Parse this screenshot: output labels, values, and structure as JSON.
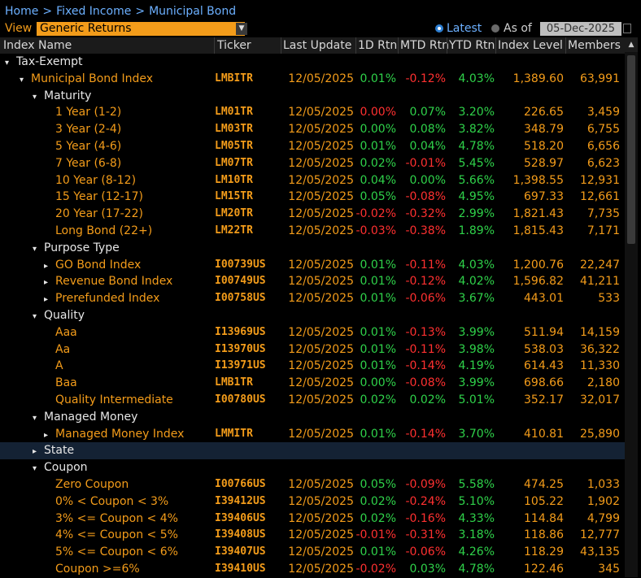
{
  "breadcrumb": [
    "Home",
    "Fixed Income",
    "Municipal Bond"
  ],
  "view": {
    "label": "View",
    "selected": "Generic Returns"
  },
  "date_mode": {
    "latest_label": "Latest",
    "as_of_label": "As of",
    "as_of_date": "05-Dec-2025",
    "selected": "Latest"
  },
  "columns": [
    "Index Name",
    "Ticker",
    "Last Update",
    "1D Rtn",
    "MTD Rtn",
    "YTD Rtn",
    "Index Level",
    "Members"
  ],
  "colors": {
    "orange": "#f39c1a",
    "positive": "#2fd24a",
    "negative": "#ff3030",
    "link": "#6cb0ff"
  },
  "rows": [
    {
      "type": "group",
      "depth": 0,
      "expanded": true,
      "name": "Tax-Exempt"
    },
    {
      "type": "data",
      "depth": 1,
      "expanded": true,
      "name": "Municipal Bond Index",
      "ticker": "LMBITR",
      "date": "12/05/2025",
      "d1": "0.01%",
      "mtd": "-0.12%",
      "ytd": "4.03%",
      "level": "1,389.60",
      "members": "63,991"
    },
    {
      "type": "group",
      "depth": 2,
      "expanded": true,
      "name": "Maturity"
    },
    {
      "type": "data",
      "depth": 3,
      "name": "1 Year (1-2)",
      "ticker": "LM01TR",
      "date": "12/05/2025",
      "d1": "0.00%",
      "d1_color": "neg",
      "mtd": "0.07%",
      "ytd": "3.20%",
      "level": "226.65",
      "members": "3,459"
    },
    {
      "type": "data",
      "depth": 3,
      "name": "3 Year (2-4)",
      "ticker": "LM03TR",
      "date": "12/05/2025",
      "d1": "0.00%",
      "mtd": "0.08%",
      "ytd": "3.82%",
      "level": "348.79",
      "members": "6,755"
    },
    {
      "type": "data",
      "depth": 3,
      "name": "5 Year (4-6)",
      "ticker": "LM05TR",
      "date": "12/05/2025",
      "d1": "0.01%",
      "mtd": "0.04%",
      "ytd": "4.78%",
      "level": "518.20",
      "members": "6,656"
    },
    {
      "type": "data",
      "depth": 3,
      "name": "7 Year (6-8)",
      "ticker": "LM07TR",
      "date": "12/05/2025",
      "d1": "0.02%",
      "mtd": "-0.01%",
      "ytd": "5.45%",
      "level": "528.97",
      "members": "6,623"
    },
    {
      "type": "data",
      "depth": 3,
      "name": "10 Year (8-12)",
      "ticker": "LM10TR",
      "date": "12/05/2025",
      "d1": "0.04%",
      "mtd": "0.00%",
      "ytd": "5.66%",
      "level": "1,398.55",
      "members": "12,931"
    },
    {
      "type": "data",
      "depth": 3,
      "name": "15 Year (12-17)",
      "ticker": "LM15TR",
      "date": "12/05/2025",
      "d1": "0.05%",
      "mtd": "-0.08%",
      "ytd": "4.95%",
      "level": "697.33",
      "members": "12,661"
    },
    {
      "type": "data",
      "depth": 3,
      "name": "20 Year (17-22)",
      "ticker": "LM20TR",
      "date": "12/05/2025",
      "d1": "-0.02%",
      "mtd": "-0.32%",
      "ytd": "2.99%",
      "level": "1,821.43",
      "members": "7,735"
    },
    {
      "type": "data",
      "depth": 3,
      "name": "Long Bond (22+)",
      "ticker": "LM22TR",
      "date": "12/05/2025",
      "d1": "-0.03%",
      "mtd": "-0.38%",
      "ytd": "1.89%",
      "level": "1,815.43",
      "members": "7,171"
    },
    {
      "type": "group",
      "depth": 2,
      "expanded": true,
      "name": "Purpose Type"
    },
    {
      "type": "data",
      "depth": 3,
      "expanded": false,
      "name": "GO Bond Index",
      "ticker": "I00739US",
      "date": "12/05/2025",
      "d1": "0.01%",
      "mtd": "-0.11%",
      "ytd": "4.03%",
      "level": "1,200.76",
      "members": "22,247"
    },
    {
      "type": "data",
      "depth": 3,
      "expanded": false,
      "name": "Revenue Bond Index",
      "ticker": "I00749US",
      "date": "12/05/2025",
      "d1": "0.01%",
      "mtd": "-0.12%",
      "ytd": "4.02%",
      "level": "1,596.82",
      "members": "41,211"
    },
    {
      "type": "data",
      "depth": 3,
      "expanded": false,
      "name": "Prerefunded Index",
      "ticker": "I00758US",
      "date": "12/05/2025",
      "d1": "0.01%",
      "mtd": "-0.06%",
      "ytd": "3.67%",
      "level": "443.01",
      "members": "533"
    },
    {
      "type": "group",
      "depth": 2,
      "expanded": true,
      "name": "Quality"
    },
    {
      "type": "data",
      "depth": 3,
      "name": "Aaa",
      "ticker": "I13969US",
      "date": "12/05/2025",
      "d1": "0.01%",
      "mtd": "-0.13%",
      "ytd": "3.99%",
      "level": "511.94",
      "members": "14,159"
    },
    {
      "type": "data",
      "depth": 3,
      "name": "Aa",
      "ticker": "I13970US",
      "date": "12/05/2025",
      "d1": "0.01%",
      "mtd": "-0.11%",
      "ytd": "3.98%",
      "level": "538.03",
      "members": "36,322"
    },
    {
      "type": "data",
      "depth": 3,
      "name": "A",
      "ticker": "I13971US",
      "date": "12/05/2025",
      "d1": "0.01%",
      "mtd": "-0.14%",
      "ytd": "4.19%",
      "level": "614.43",
      "members": "11,330"
    },
    {
      "type": "data",
      "depth": 3,
      "name": "Baa",
      "ticker": "LMB1TR",
      "date": "12/05/2025",
      "d1": "0.00%",
      "mtd": "-0.08%",
      "ytd": "3.99%",
      "level": "698.66",
      "members": "2,180"
    },
    {
      "type": "data",
      "depth": 3,
      "name": "Quality Intermediate",
      "ticker": "I00780US",
      "date": "12/05/2025",
      "d1": "0.02%",
      "mtd": "0.02%",
      "ytd": "5.01%",
      "level": "352.17",
      "members": "32,017"
    },
    {
      "type": "group",
      "depth": 2,
      "expanded": true,
      "name": "Managed Money"
    },
    {
      "type": "data",
      "depth": 3,
      "expanded": false,
      "name": "Managed Money Index",
      "ticker": "LMMITR",
      "date": "12/05/2025",
      "d1": "0.01%",
      "mtd": "-0.14%",
      "ytd": "3.70%",
      "level": "410.81",
      "members": "25,890"
    },
    {
      "type": "group",
      "depth": 2,
      "expanded": false,
      "selected": true,
      "name": "State"
    },
    {
      "type": "group",
      "depth": 2,
      "expanded": true,
      "name": "Coupon"
    },
    {
      "type": "data",
      "depth": 3,
      "name": "Zero Coupon",
      "ticker": "I00766US",
      "date": "12/05/2025",
      "d1": "0.05%",
      "mtd": "-0.09%",
      "ytd": "5.58%",
      "level": "474.25",
      "members": "1,033"
    },
    {
      "type": "data",
      "depth": 3,
      "name": "0% < Coupon < 3%",
      "ticker": "I39412US",
      "date": "12/05/2025",
      "d1": "0.02%",
      "mtd": "-0.24%",
      "ytd": "5.10%",
      "level": "105.22",
      "members": "1,902"
    },
    {
      "type": "data",
      "depth": 3,
      "name": "3% <= Coupon < 4%",
      "ticker": "I39406US",
      "date": "12/05/2025",
      "d1": "0.02%",
      "mtd": "-0.16%",
      "ytd": "4.33%",
      "level": "114.84",
      "members": "4,799"
    },
    {
      "type": "data",
      "depth": 3,
      "name": "4% <= Coupon < 5%",
      "ticker": "I39408US",
      "date": "12/05/2025",
      "d1": "-0.01%",
      "mtd": "-0.31%",
      "ytd": "3.18%",
      "level": "118.86",
      "members": "12,777"
    },
    {
      "type": "data",
      "depth": 3,
      "name": "5% <= Coupon < 6%",
      "ticker": "I39407US",
      "date": "12/05/2025",
      "d1": "0.01%",
      "mtd": "-0.06%",
      "ytd": "4.26%",
      "level": "118.29",
      "members": "43,135"
    },
    {
      "type": "data",
      "depth": 3,
      "name": "Coupon >=6%",
      "ticker": "I39410US",
      "date": "12/05/2025",
      "d1": "-0.02%",
      "mtd": "0.03%",
      "ytd": "4.78%",
      "level": "122.46",
      "members": "345"
    }
  ]
}
